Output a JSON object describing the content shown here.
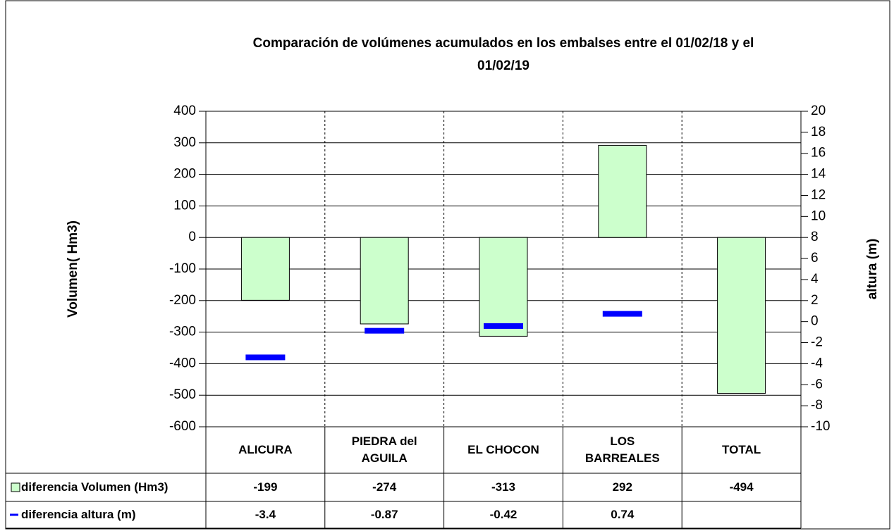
{
  "chart_data": {
    "type": "bar",
    "title": [
      "Comparación de volúmenes acumulados en los embalses entre el 01/02/18 y el",
      "01/02/19"
    ],
    "y_label": "Volumen( Hm3)",
    "y2_label": "altura (m)",
    "categories": [
      "ALICURA",
      "PIEDRA del\nAGUILA",
      "EL CHOCON",
      "LOS\nBARREALES",
      "TOTAL"
    ],
    "series": [
      {
        "name": "diferencia Volumen (Hm3)",
        "type": "bar",
        "color": "#ccffcc",
        "values": [
          -199,
          -274,
          -313,
          292,
          -494
        ]
      },
      {
        "name": "diferencia altura (m)",
        "type": "marker",
        "axis": "y2",
        "color": "#0000ff",
        "values": [
          -3.4,
          -0.87,
          -0.42,
          0.74,
          null
        ]
      }
    ],
    "ylim": [
      -600,
      400
    ],
    "yticks": [
      -600,
      -500,
      -400,
      -300,
      -200,
      -100,
      0,
      100,
      200,
      300,
      400
    ],
    "y2lim": [
      -10,
      20
    ],
    "y2ticks": [
      -10,
      -8,
      -6,
      -4,
      -2,
      0,
      2,
      4,
      6,
      8,
      10,
      12,
      14,
      16,
      18,
      20
    ],
    "grid": true
  }
}
